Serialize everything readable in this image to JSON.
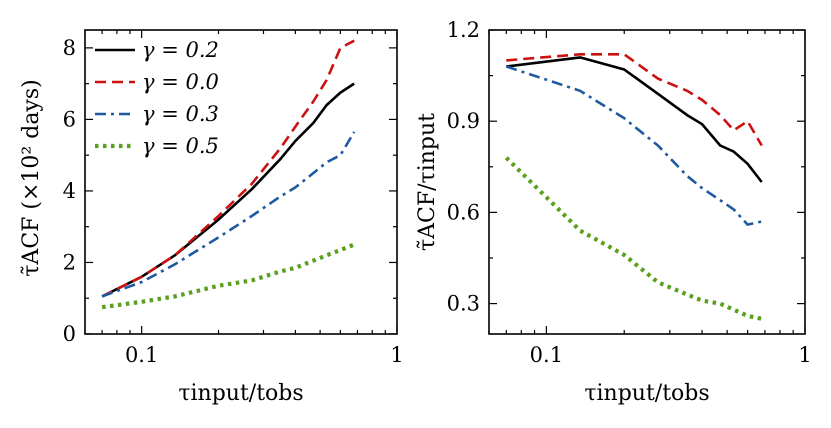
{
  "chart_data": [
    {
      "type": "line",
      "xlabel": "τinput/tobs",
      "ylabel": "τ̃ACF (×10² days)",
      "xscale": "log",
      "xlim": [
        0.06,
        1.0
      ],
      "ylim": [
        0,
        8.5
      ],
      "xticks": [
        {
          "v": 0.1,
          "label": "0.1"
        },
        {
          "v": 1.0,
          "label": "1"
        }
      ],
      "yticks": [
        {
          "v": 0,
          "label": "0"
        },
        {
          "v": 2,
          "label": "2"
        },
        {
          "v": 4,
          "label": "4"
        },
        {
          "v": 6,
          "label": "6"
        },
        {
          "v": 8,
          "label": "8"
        }
      ],
      "legend": {
        "position": "top-left"
      },
      "series": [
        {
          "name": "γ = 0.2",
          "color": "#000000",
          "dash": "solid",
          "x": [
            0.07,
            0.1,
            0.135,
            0.2,
            0.27,
            0.35,
            0.4,
            0.47,
            0.53,
            0.6,
            0.68
          ],
          "y": [
            1.05,
            1.6,
            2.2,
            3.2,
            4.05,
            4.9,
            5.4,
            5.9,
            6.4,
            6.75,
            7.0
          ]
        },
        {
          "name": "γ = 0.0",
          "color": "#cc1111",
          "dash": "dashed",
          "x": [
            0.07,
            0.1,
            0.135,
            0.2,
            0.27,
            0.35,
            0.4,
            0.47,
            0.53,
            0.6,
            0.68
          ],
          "y": [
            1.05,
            1.6,
            2.2,
            3.3,
            4.2,
            5.2,
            5.8,
            6.5,
            7.1,
            8.0,
            8.2
          ]
        },
        {
          "name": "γ = 0.3",
          "color": "#1f5aa0",
          "dash": "dashdot",
          "x": [
            0.07,
            0.1,
            0.135,
            0.2,
            0.27,
            0.35,
            0.4,
            0.47,
            0.53,
            0.6,
            0.68
          ],
          "y": [
            1.05,
            1.45,
            1.95,
            2.7,
            3.3,
            3.85,
            4.1,
            4.5,
            4.8,
            5.0,
            5.65
          ]
        },
        {
          "name": "γ = 0.5",
          "color": "#5aa01e",
          "dash": "dotted",
          "x": [
            0.07,
            0.1,
            0.135,
            0.2,
            0.27,
            0.35,
            0.4,
            0.47,
            0.53,
            0.6,
            0.68
          ],
          "y": [
            0.75,
            0.9,
            1.05,
            1.35,
            1.5,
            1.75,
            1.85,
            2.05,
            2.2,
            2.35,
            2.5
          ]
        }
      ]
    },
    {
      "type": "line",
      "xlabel": "τinput/tobs",
      "ylabel": "τ̃ACF/τinput",
      "xscale": "log",
      "xlim": [
        0.06,
        1.0
      ],
      "ylim": [
        0.2,
        1.2
      ],
      "xticks": [
        {
          "v": 0.1,
          "label": "0.1"
        },
        {
          "v": 1.0,
          "label": "1"
        }
      ],
      "yticks": [
        {
          "v": 0.3,
          "label": "0.3"
        },
        {
          "v": 0.6,
          "label": "0.6"
        },
        {
          "v": 0.9,
          "label": "0.9"
        },
        {
          "v": 1.2,
          "label": "1.2"
        }
      ],
      "series": [
        {
          "name": "γ = 0.2",
          "color": "#000000",
          "dash": "solid",
          "x": [
            0.07,
            0.135,
            0.2,
            0.27,
            0.35,
            0.4,
            0.47,
            0.53,
            0.6,
            0.68
          ],
          "y": [
            1.08,
            1.11,
            1.07,
            0.99,
            0.92,
            0.89,
            0.82,
            0.8,
            0.76,
            0.7
          ]
        },
        {
          "name": "γ = 0.0",
          "color": "#cc1111",
          "dash": "dashed",
          "x": [
            0.07,
            0.135,
            0.2,
            0.27,
            0.35,
            0.4,
            0.47,
            0.53,
            0.6,
            0.68
          ],
          "y": [
            1.1,
            1.12,
            1.12,
            1.04,
            1.0,
            0.97,
            0.92,
            0.87,
            0.9,
            0.82
          ]
        },
        {
          "name": "γ = 0.3",
          "color": "#1f5aa0",
          "dash": "dashdot",
          "x": [
            0.07,
            0.135,
            0.2,
            0.27,
            0.35,
            0.4,
            0.47,
            0.53,
            0.6,
            0.68
          ],
          "y": [
            1.08,
            1.0,
            0.91,
            0.82,
            0.72,
            0.68,
            0.64,
            0.61,
            0.56,
            0.57
          ]
        },
        {
          "name": "γ = 0.5",
          "color": "#5aa01e",
          "dash": "dotted",
          "x": [
            0.07,
            0.135,
            0.2,
            0.27,
            0.35,
            0.4,
            0.47,
            0.53,
            0.6,
            0.68
          ],
          "y": [
            0.78,
            0.54,
            0.46,
            0.37,
            0.33,
            0.31,
            0.3,
            0.28,
            0.26,
            0.25
          ]
        }
      ]
    }
  ]
}
